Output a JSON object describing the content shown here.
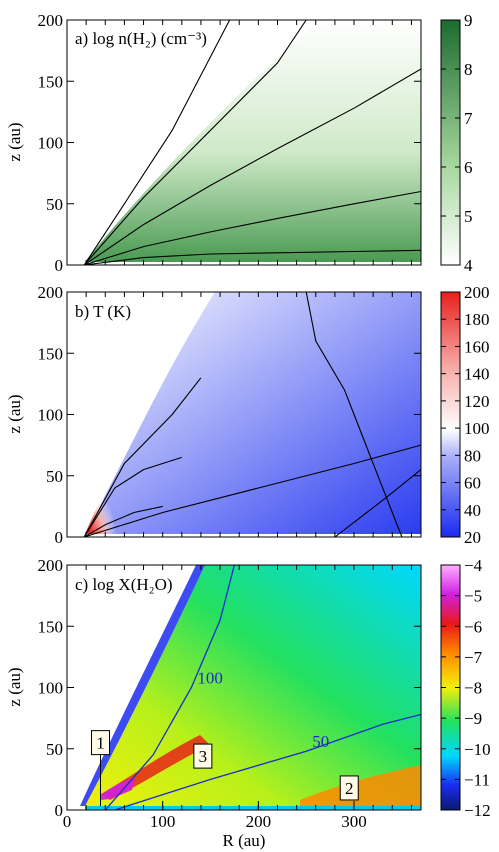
{
  "chart_data": [
    {
      "type": "heatmap",
      "panel": "a",
      "title": "a) log n(H₂) (cm⁻³)",
      "xlabel": "",
      "ylabel": "z (au)",
      "xlim": [
        0,
        370
      ],
      "ylim": [
        0,
        200
      ],
      "xticks": [],
      "yticks": [
        0,
        50,
        100,
        150,
        200
      ],
      "colorbar": {
        "min": 4,
        "max": 9,
        "ticks": [
          4,
          5,
          6,
          7,
          8,
          9
        ],
        "colors": [
          "#ffffff",
          "#1d6b2e"
        ]
      },
      "contours": [
        {
          "points": [
            [
              18,
              0
            ],
            [
              80,
              6
            ],
            [
              150,
              9
            ],
            [
              220,
              10
            ],
            [
              300,
              11
            ],
            [
              370,
              12
            ]
          ]
        },
        {
          "points": [
            [
              18,
              0
            ],
            [
              80,
              15
            ],
            [
              150,
              27
            ],
            [
              220,
              38
            ],
            [
              300,
              50
            ],
            [
              370,
              60
            ]
          ]
        },
        {
          "points": [
            [
              18,
              0
            ],
            [
              80,
              33
            ],
            [
              150,
              65
            ],
            [
              220,
              95
            ],
            [
              300,
              128
            ],
            [
              370,
              160
            ]
          ]
        },
        {
          "points": [
            [
              18,
              0
            ],
            [
              80,
              55
            ],
            [
              150,
              110
            ],
            [
              220,
              165
            ],
            [
              250,
              200
            ]
          ]
        },
        {
          "points": [
            [
              18,
              0
            ],
            [
              60,
              50
            ],
            [
              110,
              110
            ],
            [
              150,
              170
            ],
            [
              170,
              200
            ]
          ]
        }
      ]
    },
    {
      "type": "heatmap",
      "panel": "b",
      "title": "b) T (K)",
      "xlabel": "",
      "ylabel": "z (au)",
      "xlim": [
        0,
        370
      ],
      "ylim": [
        0,
        200
      ],
      "xticks": [],
      "yticks": [
        0,
        50,
        100,
        150,
        200
      ],
      "colorbar": {
        "min": 20,
        "max": 200,
        "ticks": [
          20,
          40,
          60,
          80,
          100,
          120,
          140,
          160,
          180,
          200
        ],
        "colors": [
          "#1a2bf0",
          "#ffffff",
          "#e8201c"
        ]
      },
      "contours": [
        {
          "points": [
            [
              18,
              0
            ],
            [
              40,
              10
            ],
            [
              70,
              20
            ],
            [
              100,
              25
            ]
          ]
        },
        {
          "points": [
            [
              18,
              0
            ],
            [
              50,
              40
            ],
            [
              80,
              55
            ],
            [
              100,
              60
            ],
            [
              120,
              65
            ]
          ]
        },
        {
          "points": [
            [
              18,
              0
            ],
            [
              60,
              60
            ],
            [
              110,
              100
            ],
            [
              140,
              130
            ]
          ]
        },
        {
          "points": [
            [
              18,
              0
            ],
            [
              100,
              20
            ],
            [
              200,
              40
            ],
            [
              300,
              60
            ],
            [
              370,
              75
            ]
          ]
        },
        {
          "points": [
            [
              280,
              0
            ],
            [
              330,
              30
            ],
            [
              370,
              55
            ]
          ]
        },
        {
          "points": [
            [
              250,
              200
            ],
            [
              260,
              160
            ],
            [
              290,
              120
            ],
            [
              310,
              80
            ],
            [
              330,
              40
            ],
            [
              350,
              0
            ]
          ]
        }
      ]
    },
    {
      "type": "heatmap",
      "panel": "c",
      "title": "c) log X(H₂O)",
      "xlabel": "R (au)",
      "ylabel": "z (au)",
      "xlim": [
        0,
        370
      ],
      "ylim": [
        0,
        200
      ],
      "xticks": [
        0,
        100,
        200,
        300
      ],
      "yticks": [
        0,
        50,
        100,
        150,
        200
      ],
      "colorbar": {
        "min": -12,
        "max": -4,
        "ticks": [
          -4,
          -5,
          -6,
          -7,
          -8,
          -9,
          -10,
          -11,
          -12
        ],
        "colors": [
          "#0a1a6e",
          "#1a2bf0",
          "#00d8ff",
          "#22e060",
          "#f2f00a",
          "#ff8a00",
          "#e81818",
          "#d020e0",
          "#ffb0ff"
        ]
      },
      "temperature_contours": [
        {
          "label": "100",
          "points": [
            [
              40,
              0
            ],
            [
              90,
              45
            ],
            [
              130,
              100
            ],
            [
              160,
              155
            ],
            [
              175,
              200
            ]
          ]
        },
        {
          "label": "50",
          "points": [
            [
              50,
              0
            ],
            [
              150,
              25
            ],
            [
              250,
              48
            ],
            [
              330,
              70
            ],
            [
              370,
              78
            ]
          ]
        }
      ],
      "annotations": [
        {
          "text": "1",
          "x": 35,
          "y": 55
        },
        {
          "text": "2",
          "x": 295,
          "y": 18
        },
        {
          "text": "3",
          "x": 142,
          "y": 44
        }
      ]
    }
  ]
}
